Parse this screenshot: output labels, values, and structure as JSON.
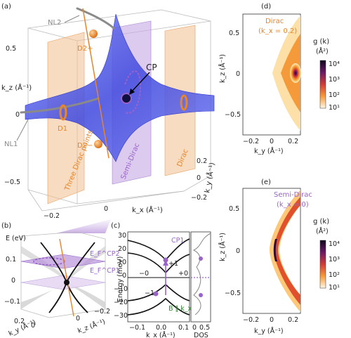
{
  "panels": {
    "a": "(a)",
    "b": "(b)",
    "c": "(c)",
    "d": "(d)",
    "e": "(e)"
  },
  "panel_a": {
    "labels": {
      "NL2": "NL2",
      "NL1": "NL1",
      "D2plus": "D2+",
      "D2minus": "D2−",
      "D1": "D1",
      "CP": "CP"
    },
    "plane_labels": {
      "three": "Three Dirac points",
      "semi": "Semi-Dirac",
      "dirac": "Dirac"
    },
    "kz_label": "k_z (Å⁻¹)",
    "kx_label": "k_x (Å⁻¹)",
    "ky_label": "k_y (Å⁻¹)",
    "kz_ticks": [
      "0.5",
      "0",
      "−0.5"
    ],
    "kx_ticks": [
      "−0.2",
      "0"
    ],
    "ky_ticks": [
      "0.2",
      "0",
      "−0.2"
    ]
  },
  "panel_b": {
    "e_label": "E (eV)",
    "e_ticks": [
      "0.1",
      "0",
      "−0.1"
    ],
    "ef_cp2": "E_F^CP2",
    "ef_cp1": "E_F^CP1",
    "ky_label": "k_y (Å⁻¹)",
    "kz_label": "k_z (Å⁻¹)",
    "ky_ticks": [
      "0.2",
      "0"
    ],
    "kz_ticks": [
      "0",
      "−0.2"
    ]
  },
  "panel_c": {
    "ylabel": "Energy (meV)",
    "xlabel": "k_x (Å⁻¹)",
    "dos_label": "DOS",
    "y_ticks": [
      "30",
      "20",
      "10",
      "0",
      "−10",
      "−20",
      "−30"
    ],
    "x_ticks": [
      "−0.1",
      "0.0",
      "0.1"
    ],
    "dos_ticks": [
      "0",
      "0.5"
    ],
    "cp1": "CP1",
    "plus1": "+1",
    "minus1": "−1",
    "minus0": "−0",
    "plus0": "+0",
    "field": "B ∥ k_x"
  },
  "panel_d": {
    "title_line1": "Dirac",
    "title_line2": "(k_x = 0.2)",
    "xlabel": "k_y (Å⁻¹)",
    "ylabel": "k_z (Å⁻¹)",
    "x_ticks": [
      "−0.2",
      "0",
      "0.2"
    ],
    "y_ticks": [
      "0.5",
      "0",
      "−0.5"
    ]
  },
  "panel_e": {
    "title_line1": "Semi-Dirac",
    "title_line2": "(k_x = 0)",
    "xlabel": "k_y (Å⁻¹)",
    "ylabel": "k_z (Å⁻¹)",
    "x_ticks": [
      "−0.2",
      "0",
      "0.2"
    ],
    "y_ticks": [
      "0.5",
      "0",
      "−0.5"
    ]
  },
  "colorbar": {
    "title": "g (k)",
    "unit": "(Å²)",
    "ticks": [
      "10⁴",
      "10³",
      "10²",
      "10¹"
    ]
  },
  "colors": {
    "orange": "#e8842a",
    "purple": "#9a63c9",
    "blue": "#4a54e6",
    "green": "#2a8a2a"
  }
}
